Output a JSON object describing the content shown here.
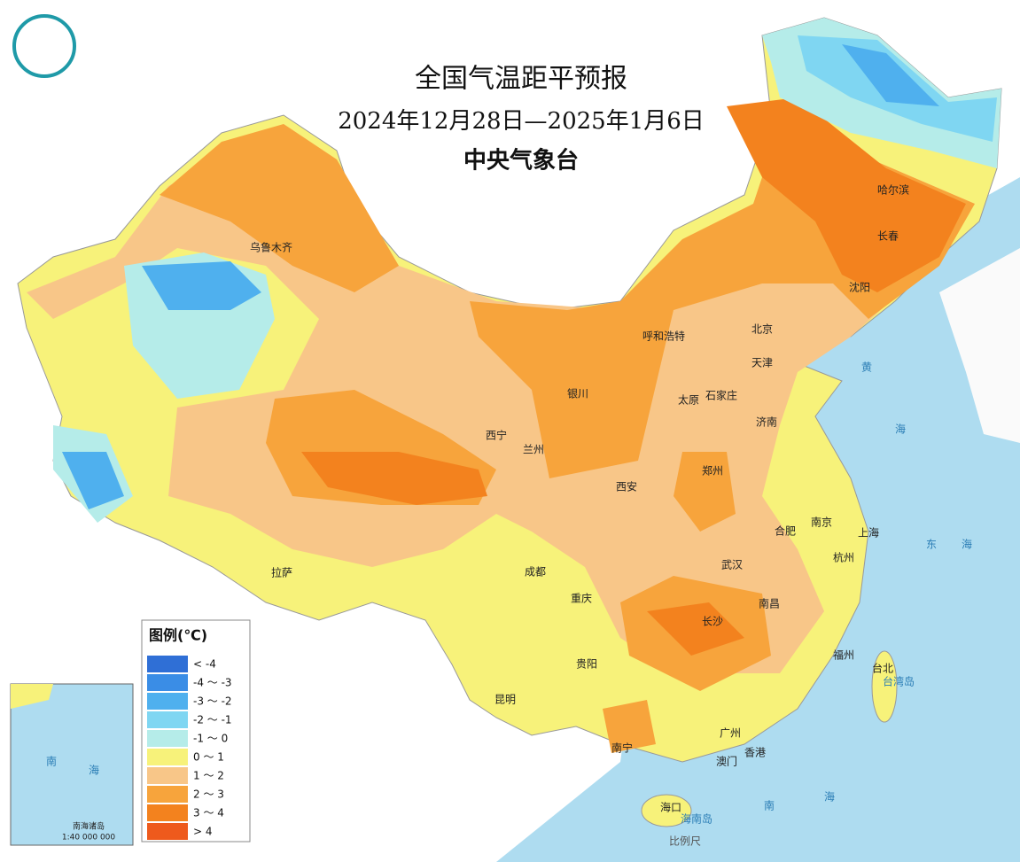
{
  "header": {
    "title": "全国气温距平预报",
    "date_range": "2024年12月28日—2025年1月6日",
    "agency": "中央气象台"
  },
  "legend": {
    "title": "图例(℃)",
    "items": [
      {
        "label": "< -4",
        "color": "#2f6fd6"
      },
      {
        "label": "-4 ～ -3",
        "color": "#3a8de6"
      },
      {
        "label": "-3 ～ -2",
        "color": "#4fb0ee"
      },
      {
        "label": "-2 ～ -1",
        "color": "#7fd6f2"
      },
      {
        "label": "-1 ～ 0",
        "color": "#b5ece9"
      },
      {
        "label": "0 ～ 1",
        "color": "#f7f27a"
      },
      {
        "label": "1 ～ 2",
        "color": "#f8c688"
      },
      {
        "label": "2 ～ 3",
        "color": "#f7a43c"
      },
      {
        "label": "3 ～ 4",
        "color": "#f3821e"
      },
      {
        "label": "> 4",
        "color": "#ee5a1c"
      }
    ]
  },
  "cities": [
    "乌鲁木齐",
    "哈尔滨",
    "长春",
    "沈阳",
    "北京",
    "天津",
    "呼和浩特",
    "石家庄",
    "太原",
    "银川",
    "西宁",
    "兰州",
    "济南",
    "郑州",
    "西安",
    "南京",
    "上海",
    "合肥",
    "杭州",
    "武汉",
    "成都",
    "重庆",
    "长沙",
    "南昌",
    "贵阳",
    "昆明",
    "福州",
    "台北",
    "广州",
    "南宁",
    "澳门",
    "香港",
    "海口",
    "拉萨"
  ],
  "islands": [
    "台湾岛",
    "海南岛"
  ],
  "seas": {
    "yellow_sea": "黄",
    "sea": "海",
    "east": "东",
    "south": "南"
  },
  "scale": "比例尺",
  "inset": {
    "title": "南海诸岛",
    "ratio": "1:40 000 000"
  }
}
